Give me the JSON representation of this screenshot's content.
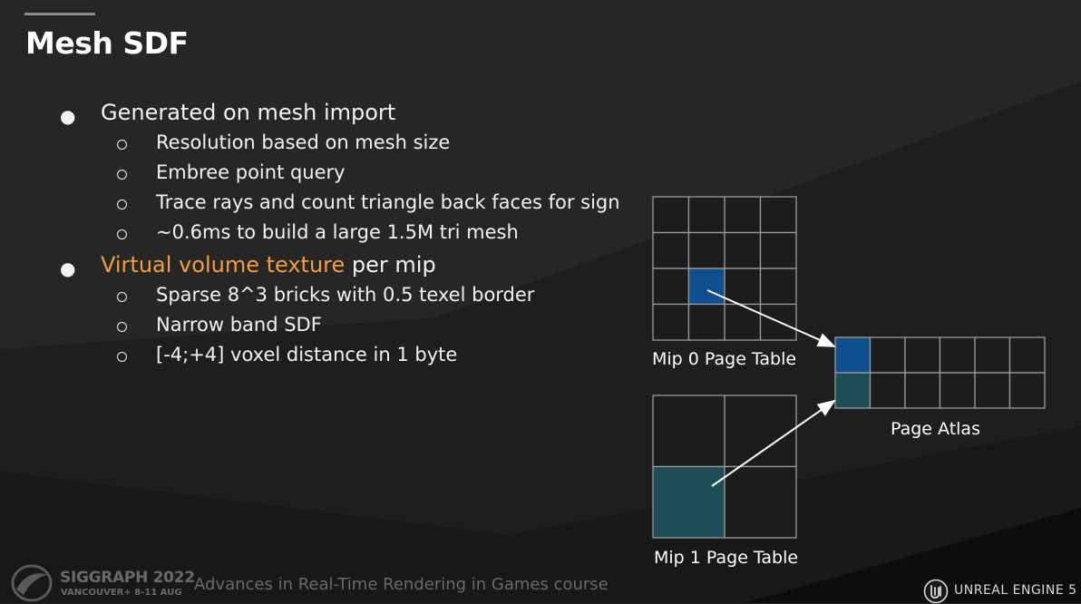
{
  "slide": {
    "title": "Mesh SDF",
    "bullets": [
      {
        "text_highlight": "",
        "text": "Generated on mesh import",
        "sub": [
          "Resolution based on mesh size",
          "Embree point query",
          "Trace rays and count triangle back faces for sign",
          "~0.6ms to build a large 1.5M tri mesh"
        ]
      },
      {
        "text_highlight": "Virtual volume texture",
        "text": " per mip",
        "sub": [
          "Sparse 8^3 bricks with 0.5 texel border",
          "Narrow band SDF",
          "[-4;+4] voxel distance in 1 byte"
        ]
      }
    ],
    "highlight_color": "#f49d3c"
  },
  "diagram": {
    "mip0_label": "Mip 0 Page Table",
    "mip1_label": "Mip 1 Page Table",
    "atlas_label": "Page Atlas",
    "mip0_grid": {
      "rows": 4,
      "cols": 4,
      "filled": [
        [
          2,
          1,
          "#0f4f8f"
        ]
      ]
    },
    "mip1_grid": {
      "rows": 2,
      "cols": 2,
      "filled": [
        [
          1,
          0,
          "#1d4d57"
        ]
      ]
    },
    "atlas_grid": {
      "rows": 2,
      "cols": 6,
      "filled": [
        [
          0,
          0,
          "#0f4f8f"
        ],
        [
          1,
          0,
          "#1d4d57"
        ]
      ]
    }
  },
  "footer": {
    "conference": "SIGGRAPH 2022",
    "location": "VANCOUVER+  8-11 AUG",
    "course": "Advances in Real-Time Rendering in Games course",
    "engine": "UNREAL ENGINE 5"
  }
}
